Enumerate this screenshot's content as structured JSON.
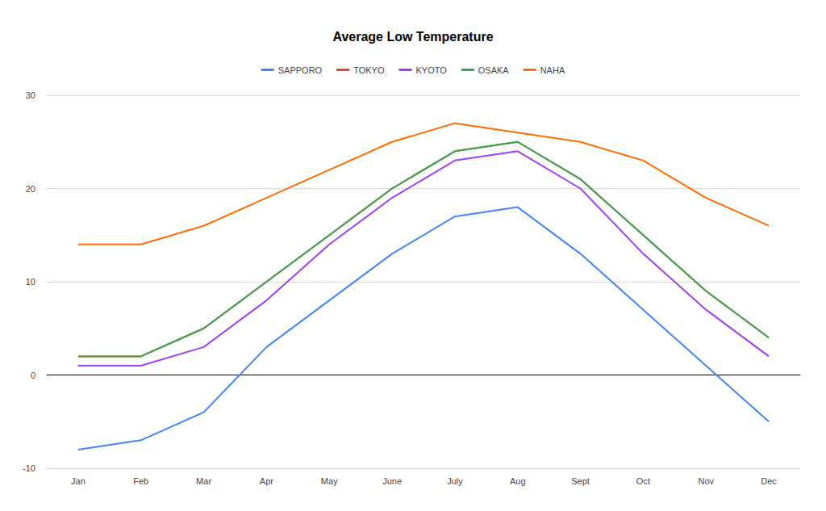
{
  "chart_data": {
    "type": "line",
    "title": "Average Low Temperature",
    "categories": [
      "Jan",
      "Feb",
      "Mar",
      "Apr",
      "May",
      "June",
      "July",
      "Aug",
      "Sept",
      "Oct",
      "Nov",
      "Dec"
    ],
    "series": [
      {
        "name": "SAPPORO",
        "color": "#4285f4",
        "values": [
          -8,
          -7,
          -4,
          3,
          8,
          13,
          17,
          18,
          13,
          7,
          1,
          -5
        ]
      },
      {
        "name": "TOKYO",
        "color": "#ea4335",
        "values": [
          2,
          2,
          5,
          10,
          15,
          20,
          24,
          25,
          21,
          15,
          9,
          4
        ]
      },
      {
        "name": "KYOTO",
        "color": "#a03ef0",
        "values": [
          1,
          1,
          3,
          8,
          14,
          19,
          23,
          24,
          20,
          13,
          7,
          2
        ]
      },
      {
        "name": "OSAKA",
        "color": "#34a853",
        "values": [
          2,
          2,
          5,
          10,
          15,
          20,
          24,
          25,
          21,
          15,
          9,
          4
        ]
      },
      {
        "name": "NAHA",
        "color": "#ff6d01",
        "values": [
          14,
          14,
          16,
          19,
          22,
          25,
          27,
          26,
          25,
          23,
          19,
          16
        ]
      }
    ],
    "ylim": [
      -10,
      30
    ],
    "yticks": [
      -10,
      0,
      10,
      20,
      30
    ],
    "grid": true,
    "legend": "top"
  }
}
